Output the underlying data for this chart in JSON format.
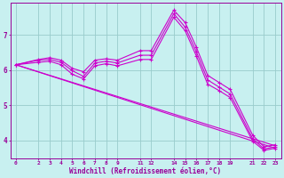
{
  "title": "",
  "xlabel": "Windchill (Refroidissement éolien,°C)",
  "ylabel": "",
  "bg_color": "#c8f0f0",
  "line_color": "#cc00cc",
  "grid_color": "#99cccc",
  "axis_color": "#990099",
  "x_ticks": [
    0,
    2,
    3,
    4,
    5,
    6,
    7,
    8,
    9,
    11,
    12,
    14,
    15,
    16,
    17,
    18,
    19,
    21,
    22,
    23
  ],
  "y_ticks": [
    4,
    5,
    6,
    7
  ],
  "xlim": [
    -0.5,
    23.5
  ],
  "ylim": [
    3.5,
    7.9
  ],
  "lines": [
    {
      "x": [
        0,
        2,
        3,
        4,
        5,
        6,
        7,
        8,
        9,
        11,
        12,
        14,
        15,
        16,
        17,
        18,
        19,
        21,
        22,
        23
      ],
      "y": [
        6.15,
        6.3,
        6.35,
        6.28,
        6.05,
        5.95,
        6.28,
        6.32,
        6.28,
        6.55,
        6.55,
        7.7,
        7.35,
        6.65,
        5.85,
        5.65,
        5.45,
        4.15,
        3.82,
        3.88
      ]
    },
    {
      "x": [
        0,
        2,
        3,
        4,
        5,
        6,
        7,
        8,
        9,
        11,
        12,
        14,
        15,
        16,
        17,
        18,
        19,
        21,
        22,
        23
      ],
      "y": [
        6.15,
        6.28,
        6.3,
        6.22,
        5.98,
        5.82,
        6.2,
        6.25,
        6.2,
        6.42,
        6.42,
        7.6,
        7.22,
        6.52,
        5.72,
        5.52,
        5.32,
        4.05,
        3.76,
        3.82
      ]
    },
    {
      "x": [
        0,
        2,
        3,
        4,
        5,
        6,
        7,
        8,
        9,
        11,
        12,
        14,
        15,
        16,
        17,
        18,
        19,
        21,
        22,
        23
      ],
      "y": [
        6.15,
        6.22,
        6.25,
        6.15,
        5.88,
        5.75,
        6.12,
        6.18,
        6.12,
        6.3,
        6.3,
        7.5,
        7.12,
        6.4,
        5.6,
        5.42,
        5.22,
        3.98,
        3.72,
        3.78
      ]
    },
    {
      "x": [
        0,
        23
      ],
      "y": [
        6.15,
        3.85
      ]
    },
    {
      "x": [
        0,
        23
      ],
      "y": [
        6.15,
        3.78
      ]
    }
  ]
}
